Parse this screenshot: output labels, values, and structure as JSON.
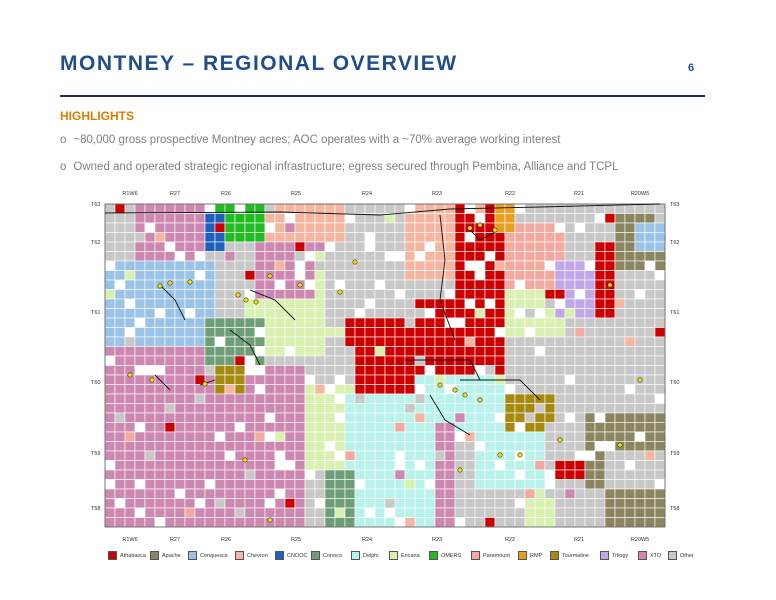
{
  "slide": {
    "title": "MONTNEY – REGIONAL OVERVIEW",
    "page_number": "6",
    "highlights_heading": "HIGHLIGHTS",
    "bullets": [
      "~80,000 gross prospective Montney acres; AOC operates with a ~70% average working interest",
      "Owned and operated strategic regional infrastructure; egress secured through Pembina, Alliance and TCPL"
    ]
  },
  "map": {
    "top_ranges": [
      "R1W6",
      "R27",
      "R26",
      "R25",
      "R24",
      "R23",
      "R22",
      "R21",
      "R20W5"
    ],
    "bottom_ranges": [
      "R1W6",
      "R27",
      "R26",
      "R25",
      "R24",
      "R23",
      "R22",
      "R21",
      "R20W5"
    ],
    "left_townships": [
      "T63",
      "T62",
      "T61",
      "T60",
      "T59",
      "T58"
    ],
    "right_townships": [
      "T63",
      "T62",
      "T61",
      "T60",
      "T59",
      "T58"
    ]
  },
  "legend": [
    {
      "label": "Athabasca",
      "color": "#cc0000"
    },
    {
      "label": "Apache",
      "color": "#8b8560"
    },
    {
      "label": "Cenquesce",
      "color": "#9ac3e6"
    },
    {
      "label": "Chevron",
      "color": "#f4b6a0"
    },
    {
      "label": "CNOOC",
      "color": "#1f5fbf"
    },
    {
      "label": "Conoco",
      "color": "#6e9e78"
    },
    {
      "label": "Delphi",
      "color": "#b8f2ea"
    },
    {
      "label": "Encana",
      "color": "#d8f0b0"
    },
    {
      "label": "OMERS",
      "color": "#22bb22"
    },
    {
      "label": "Paramount",
      "color": "#f2aaa0"
    },
    {
      "label": "RMP",
      "color": "#e8a020"
    },
    {
      "label": "Tourmaline",
      "color": "#a68a10"
    },
    {
      "label": "Trilogy",
      "color": "#c0a8e8"
    },
    {
      "label": "XTO",
      "color": "#cc88b0"
    },
    {
      "label": "Other",
      "color": "#c8c8c8"
    }
  ]
}
